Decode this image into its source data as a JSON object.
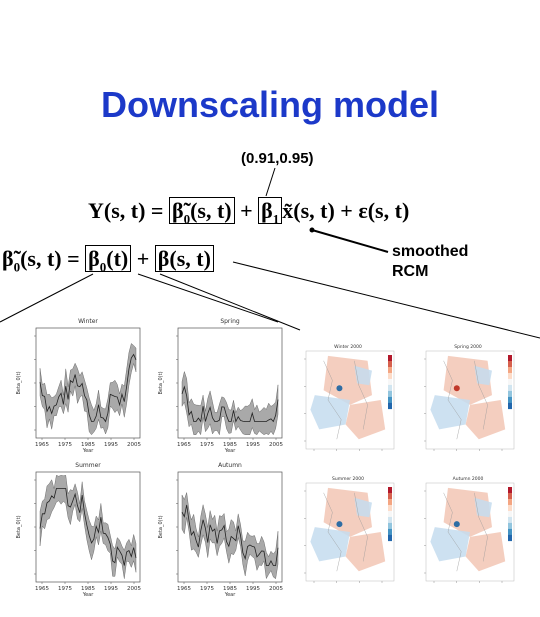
{
  "slide": {
    "title": "Downscaling model",
    "annotation_top": "(0.91,0.95)",
    "annotation_side_line1": "smoothed",
    "annotation_side_line2": "RCM",
    "equation1": "Y(s, t) = β̃₀(s, t) + β₁x̃(s, t) + ε(s, t)",
    "equation2": "β̃₀(s, t) = β₀(t) + β(s, t)"
  },
  "ts_panels": [
    {
      "title": "Winter",
      "ylabel": "Beta_0(t)",
      "xlabel": "Year",
      "xticks": [
        "1965",
        "1975",
        "1985",
        "1995",
        "2005"
      ]
    },
    {
      "title": "Spring",
      "ylabel": "Beta_0(t)",
      "xlabel": "Year",
      "xticks": [
        "1965",
        "1975",
        "1985",
        "1995",
        "2005"
      ]
    },
    {
      "title": "Summer",
      "ylabel": "Beta_0(t)",
      "xlabel": "Year",
      "xticks": [
        "1965",
        "1975",
        "1985",
        "1995",
        "2005"
      ]
    },
    {
      "title": "Autumn",
      "ylabel": "Beta_0(t)",
      "xlabel": "Year",
      "xticks": [
        "1965",
        "1975",
        "1985",
        "1995",
        "2005"
      ]
    }
  ],
  "map_panels": [
    {
      "title": "Winter 2000"
    },
    {
      "title": "Spring 2000"
    },
    {
      "title": "Summer 2000"
    },
    {
      "title": "Autumn 2000"
    }
  ],
  "colors": {
    "title": "#1c39c9",
    "band": "#a9a9a9",
    "warm": "#f2c6b4",
    "cool": "#c4dcef"
  }
}
